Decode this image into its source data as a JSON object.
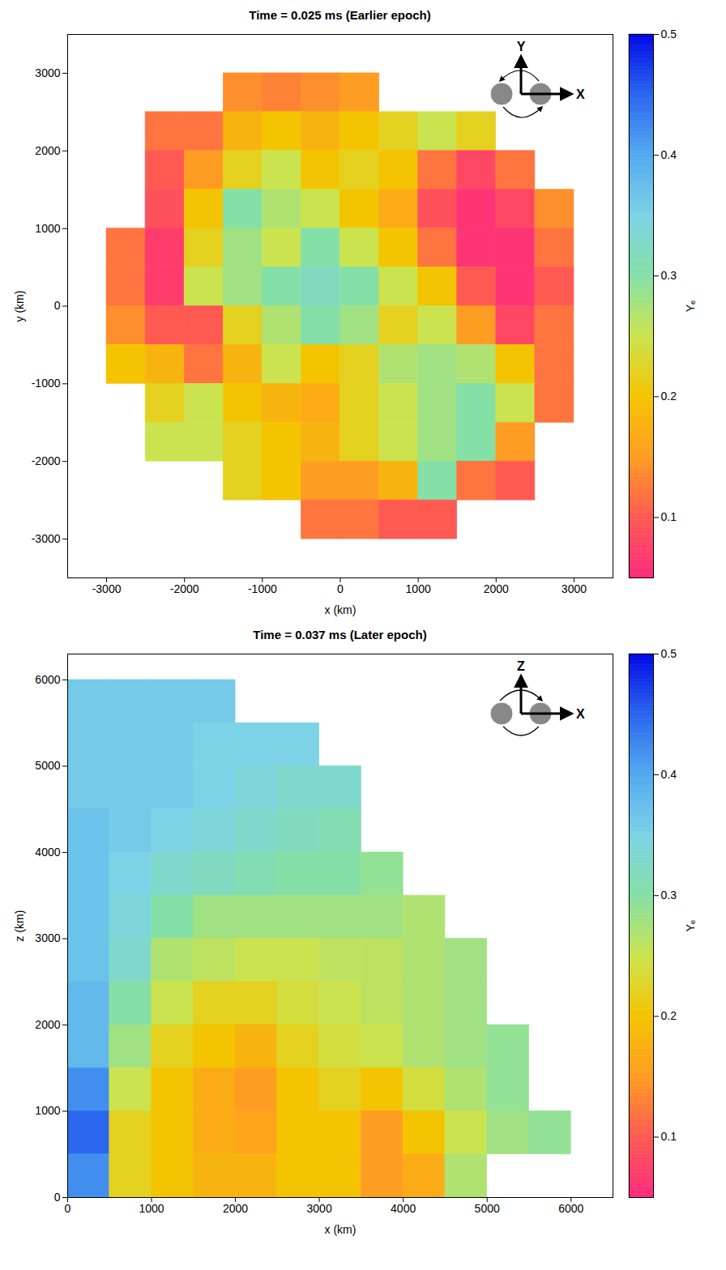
{
  "chart_data": [
    {
      "type": "heatmap",
      "title": "Time = 0.025 ms (Earlier epoch)",
      "x_label": "x (km)",
      "y_label": "y (km)",
      "xlim": [
        -3500,
        3500
      ],
      "ylim": [
        -3500,
        3500
      ],
      "xticks": [
        -3000,
        -2000,
        -1000,
        0,
        1000,
        2000,
        3000
      ],
      "yticks": [
        -3000,
        -2000,
        -1000,
        0,
        1000,
        2000,
        3000
      ],
      "annotations": [
        "Y",
        "X"
      ],
      "cells": {
        "x_edges": [
          -3500,
          -3000,
          -2500,
          -2000,
          -1500,
          -1000,
          -500,
          0,
          500,
          1000,
          1500,
          2000,
          2500,
          3000,
          3500
        ],
        "y_edges": [
          3500,
          3000,
          2500,
          2000,
          1500,
          1000,
          500,
          0,
          -500,
          -1000,
          -1500,
          -2000,
          -2500,
          -3000,
          -3500
        ],
        "values": [
          [
            null,
            null,
            null,
            null,
            null,
            null,
            null,
            null,
            null,
            null,
            null,
            null,
            null,
            null
          ],
          [
            null,
            null,
            null,
            null,
            0.14,
            0.13,
            0.14,
            0.15,
            null,
            null,
            null,
            null,
            null,
            null
          ],
          [
            null,
            null,
            0.12,
            0.12,
            0.18,
            0.2,
            0.18,
            0.2,
            0.22,
            0.25,
            0.22,
            null,
            null,
            null
          ],
          [
            null,
            null,
            0.1,
            0.15,
            0.22,
            0.25,
            0.2,
            0.22,
            0.2,
            0.12,
            0.08,
            0.12,
            null,
            null
          ],
          [
            null,
            null,
            0.09,
            0.2,
            0.3,
            0.27,
            0.25,
            0.2,
            0.17,
            0.09,
            0.06,
            0.08,
            0.14,
            null
          ],
          [
            null,
            0.12,
            0.07,
            0.22,
            0.28,
            0.25,
            0.3,
            0.25,
            0.2,
            0.12,
            0.06,
            0.06,
            0.12,
            null
          ],
          [
            null,
            0.12,
            0.07,
            0.25,
            0.28,
            0.3,
            0.32,
            0.3,
            0.25,
            0.2,
            0.1,
            0.06,
            0.1,
            null
          ],
          [
            null,
            0.14,
            0.1,
            0.1,
            0.22,
            0.27,
            0.3,
            0.28,
            0.22,
            0.25,
            0.15,
            0.08,
            0.12,
            null
          ],
          [
            null,
            0.2,
            0.18,
            0.12,
            0.18,
            0.25,
            0.2,
            0.22,
            0.27,
            0.28,
            0.27,
            0.2,
            0.12,
            null
          ],
          [
            null,
            null,
            0.22,
            0.25,
            0.2,
            0.18,
            0.17,
            0.22,
            0.25,
            0.28,
            0.3,
            0.25,
            0.12,
            null
          ],
          [
            null,
            null,
            0.25,
            0.25,
            0.22,
            0.2,
            0.18,
            0.22,
            0.25,
            0.28,
            0.3,
            0.15,
            null,
            null
          ],
          [
            null,
            null,
            null,
            null,
            0.22,
            0.2,
            0.15,
            0.15,
            0.18,
            0.3,
            0.12,
            0.1,
            null,
            null
          ],
          [
            null,
            null,
            null,
            null,
            null,
            null,
            0.12,
            0.12,
            0.1,
            0.1,
            null,
            null,
            null,
            null
          ],
          [
            null,
            null,
            null,
            null,
            null,
            null,
            null,
            null,
            null,
            null,
            null,
            null,
            null,
            null
          ]
        ]
      },
      "colorbar": {
        "range": [
          0.05,
          0.5
        ],
        "ticks": [
          0.1,
          0.2,
          0.3,
          0.4,
          0.5
        ],
        "label": "Yₑ"
      }
    },
    {
      "type": "heatmap",
      "title": "Time = 0.037 ms (Later epoch)",
      "x_label": "x (km)",
      "y_label": "z (km)",
      "xlim": [
        0,
        6500
      ],
      "ylim": [
        0,
        6300
      ],
      "xticks": [
        0,
        1000,
        2000,
        3000,
        4000,
        5000,
        6000
      ],
      "yticks": [
        0,
        1000,
        2000,
        3000,
        4000,
        5000,
        6000
      ],
      "annotations": [
        "Z",
        "X"
      ],
      "cells": {
        "x_edges": [
          0,
          500,
          1000,
          1500,
          2000,
          2500,
          3000,
          3500,
          4000,
          4500,
          5000,
          5500,
          6000,
          6500
        ],
        "y_edges": [
          6000,
          5500,
          5000,
          4500,
          4000,
          3500,
          3000,
          2500,
          2000,
          1500,
          1000,
          500,
          0
        ],
        "values": [
          [
            0.36,
            0.36,
            0.36,
            0.36,
            null,
            null,
            null,
            null,
            null,
            null,
            null,
            null,
            null
          ],
          [
            0.36,
            0.36,
            0.36,
            0.35,
            0.35,
            0.35,
            null,
            null,
            null,
            null,
            null,
            null,
            null
          ],
          [
            0.36,
            0.36,
            0.36,
            0.35,
            0.34,
            0.33,
            0.33,
            null,
            null,
            null,
            null,
            null,
            null
          ],
          [
            0.37,
            0.36,
            0.35,
            0.34,
            0.33,
            0.32,
            0.31,
            null,
            null,
            null,
            null,
            null,
            null
          ],
          [
            0.37,
            0.35,
            0.33,
            0.32,
            0.31,
            0.3,
            0.3,
            0.29,
            null,
            null,
            null,
            null,
            null
          ],
          [
            0.37,
            0.34,
            0.3,
            0.28,
            0.28,
            0.28,
            0.28,
            0.28,
            0.27,
            null,
            null,
            null,
            null
          ],
          [
            0.37,
            0.33,
            0.27,
            0.26,
            0.25,
            0.25,
            0.26,
            0.26,
            0.27,
            0.28,
            null,
            null,
            null
          ],
          [
            0.38,
            0.3,
            0.25,
            0.22,
            0.22,
            0.24,
            0.25,
            0.26,
            0.27,
            0.28,
            null,
            null,
            null
          ],
          [
            0.38,
            0.28,
            0.22,
            0.2,
            0.18,
            0.22,
            0.24,
            0.25,
            0.27,
            0.28,
            0.29,
            null,
            null
          ],
          [
            0.42,
            0.25,
            0.2,
            0.17,
            0.15,
            0.2,
            0.22,
            0.2,
            0.24,
            0.27,
            0.29,
            null,
            null
          ],
          [
            0.45,
            0.22,
            0.2,
            0.17,
            0.16,
            0.2,
            0.2,
            0.15,
            0.2,
            0.25,
            0.28,
            0.29,
            null
          ],
          [
            0.42,
            0.22,
            0.2,
            0.18,
            0.18,
            0.2,
            0.2,
            0.15,
            0.17,
            0.27,
            null,
            null,
            null
          ]
        ]
      },
      "colorbar": {
        "range": [
          0.05,
          0.5
        ],
        "ticks": [
          0.1,
          0.2,
          0.3,
          0.4,
          0.5
        ],
        "label": "Yₑ"
      }
    }
  ]
}
